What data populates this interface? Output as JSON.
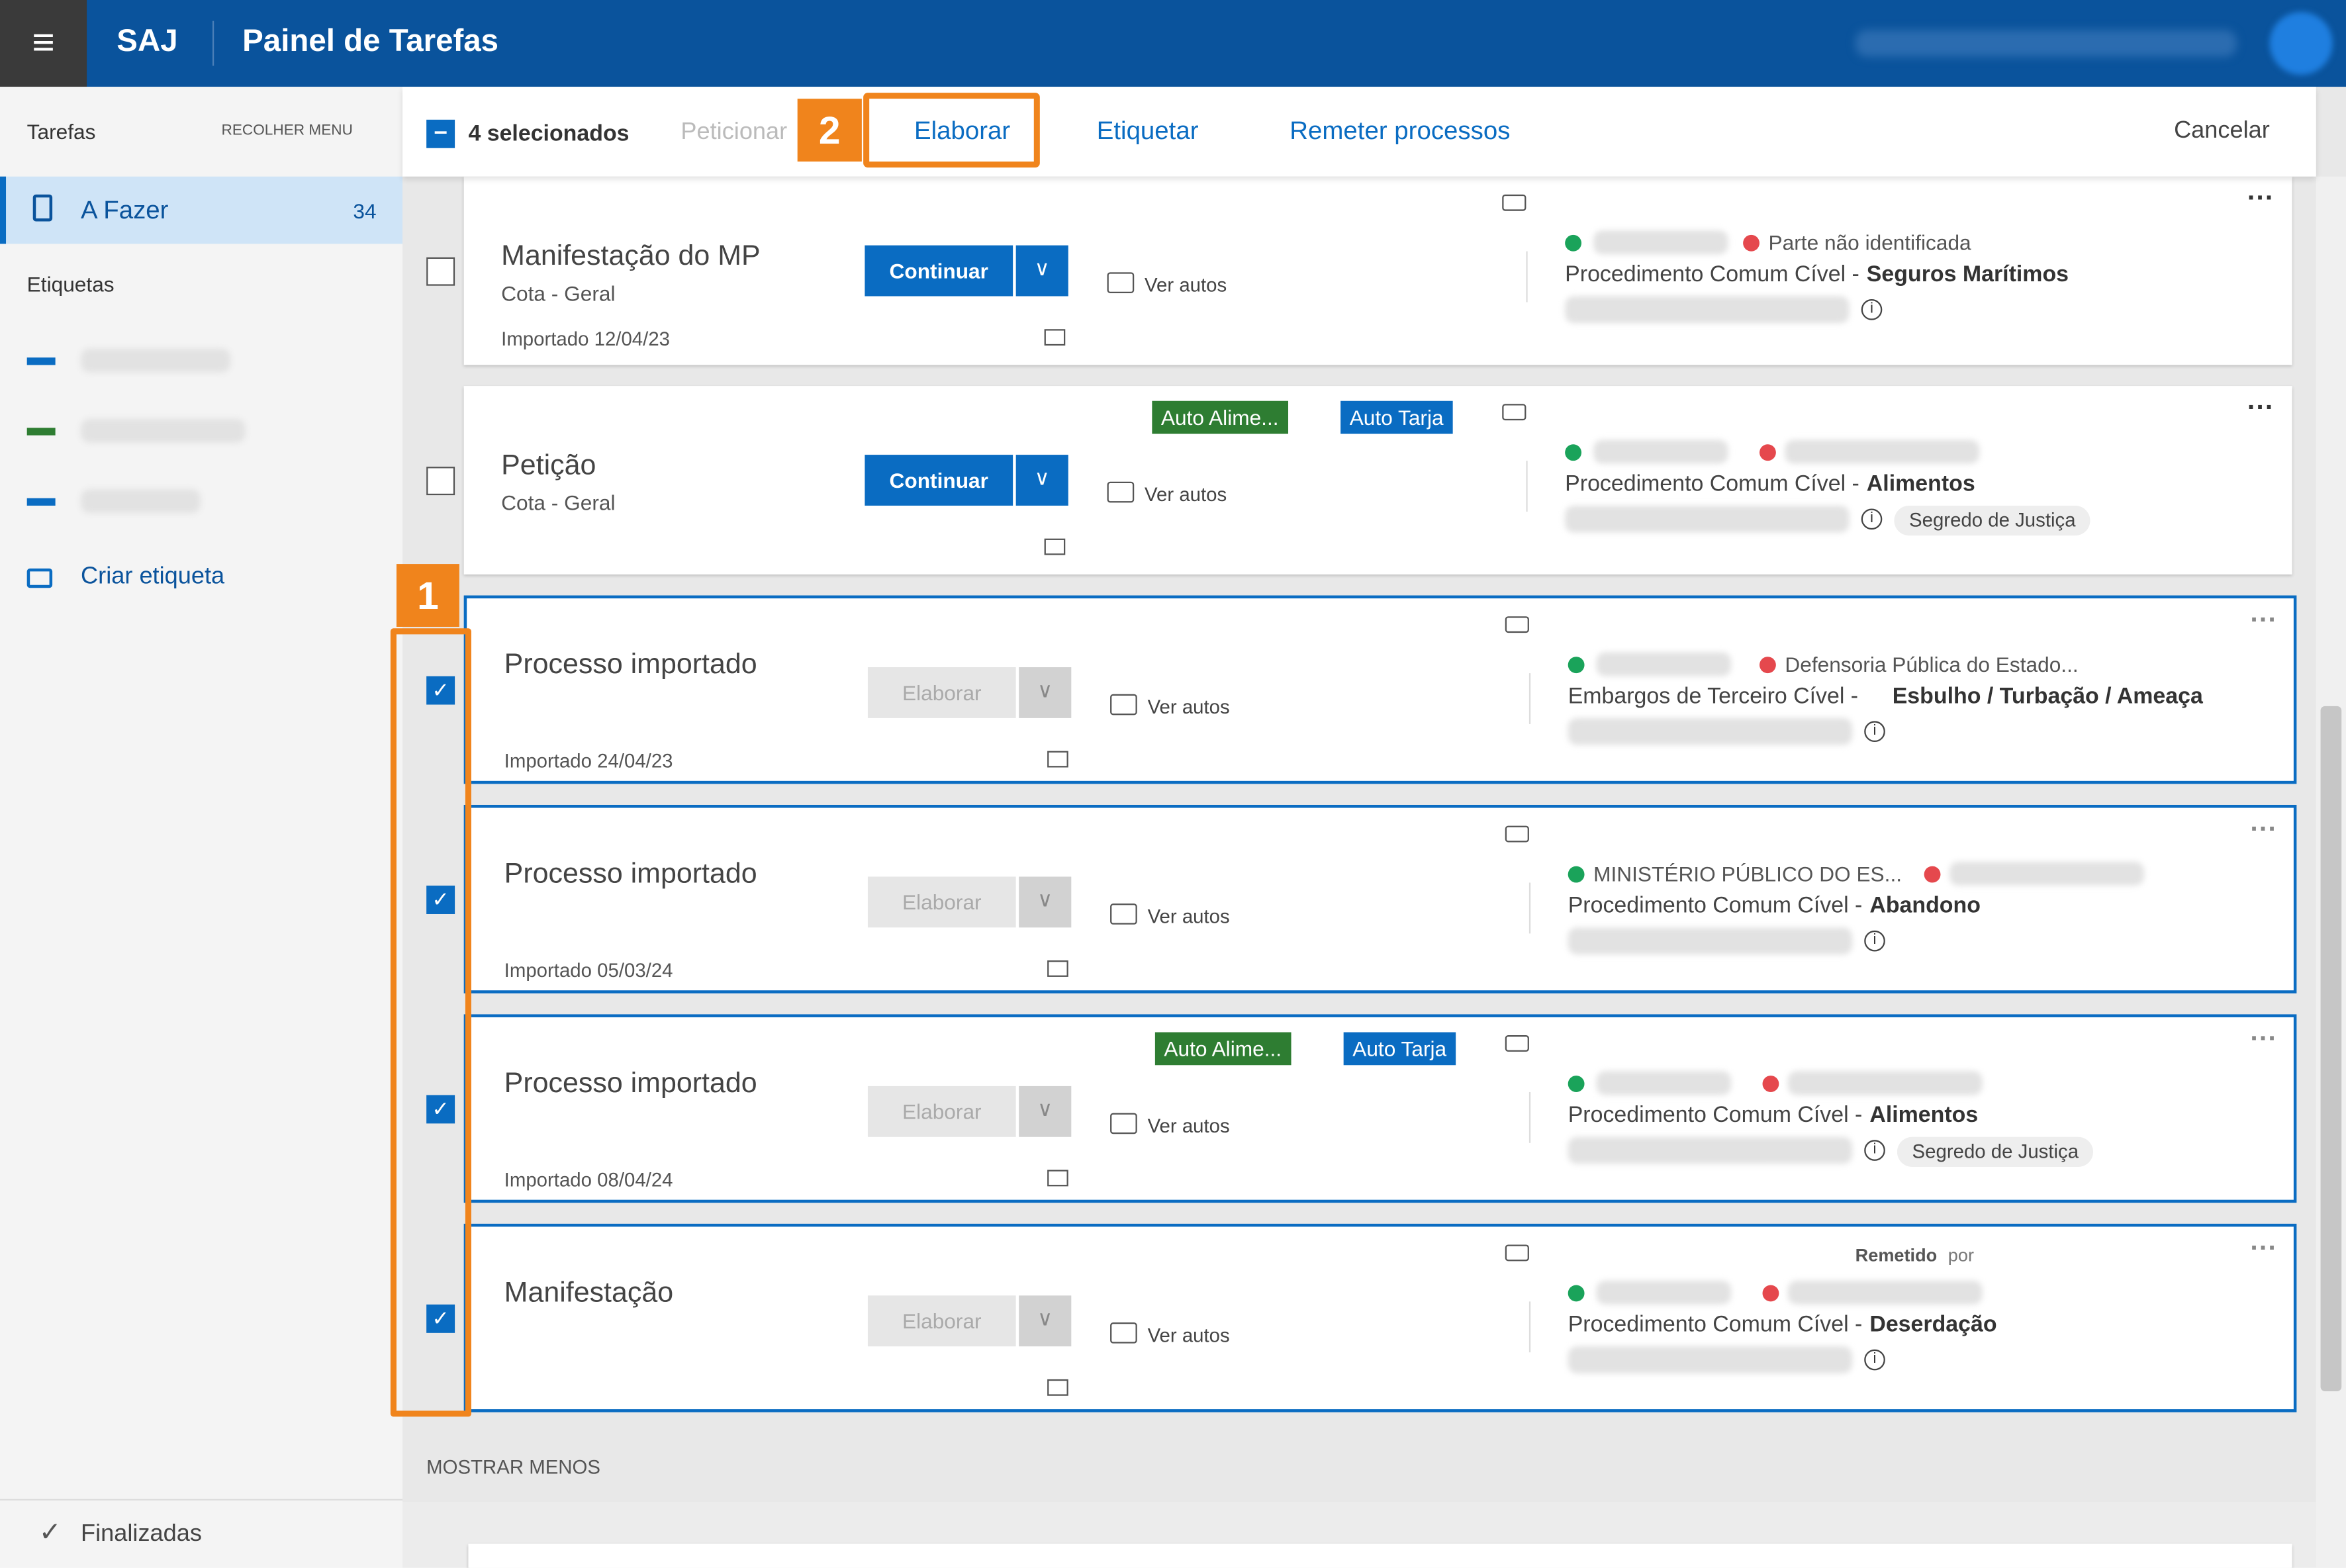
{
  "header": {
    "brand": "SAJ",
    "title": "Painel de Tarefas"
  },
  "toolbar": {
    "selected": "4 selecionados",
    "actions": [
      "Peticionar",
      "Elaborar",
      "Etiquetar",
      "Remeter processos"
    ],
    "cancel": "Cancelar"
  },
  "sidebar": {
    "title": "Tarefas",
    "collapse": "RECOLHER MENU",
    "item": "A Fazer",
    "count": 34,
    "tags_title": "Etiquetas",
    "create_tag": "Criar etiqueta",
    "finished": "Finalizadas"
  },
  "callouts": [
    1,
    2
  ],
  "common": {
    "view": "Ver autos",
    "show_less": "MOSTRAR MENOS"
  },
  "cards": [
    {
      "title": "Manifestação do MP",
      "subtitle": "Cota - Geral",
      "date": "Importado 12/04/23",
      "button": "Continuar",
      "checked": false,
      "minus_party": "Parte não identificada",
      "class": "Procedimento Comum Cível -",
      "subject": "Seguros Marítimos"
    },
    {
      "title": "Petição",
      "subtitle": "Cota - Geral",
      "button": "Continuar",
      "checked": false,
      "tags": [
        "Auto Alime...",
        "Auto Tarja"
      ],
      "class": "Procedimento Comum Cível -",
      "subject": "Alimentos",
      "badge": "Segredo de Justiça"
    },
    {
      "title": "Processo importado",
      "date": "Importado 24/04/23",
      "button": "Elaborar",
      "checked": true,
      "minus_party": "Defensoria Pública do Estado...",
      "class": "Embargos de Terceiro Cível -",
      "subject": "Esbulho / Turbação / Ameaça"
    },
    {
      "title": "Processo importado",
      "date": "Importado 05/03/24",
      "button": "Elaborar",
      "checked": true,
      "plus_party": "MINISTÉRIO PÚBLICO DO ES...",
      "class": "Procedimento Comum Cível -",
      "subject": "Abandono"
    },
    {
      "title": "Processo importado",
      "date": "Importado 08/04/24",
      "button": "Elaborar",
      "checked": true,
      "tags": [
        "Auto Alime...",
        "Auto Tarja"
      ],
      "class": "Procedimento Comum Cível -",
      "subject": "Alimentos",
      "badge": "Segredo de Justiça"
    },
    {
      "title": "Manifestação",
      "button": "Elaborar",
      "checked": true,
      "remetido": "Remetido",
      "por": "por",
      "class": "Procedimento Comum Cível -",
      "subject": "Deserdação"
    }
  ]
}
